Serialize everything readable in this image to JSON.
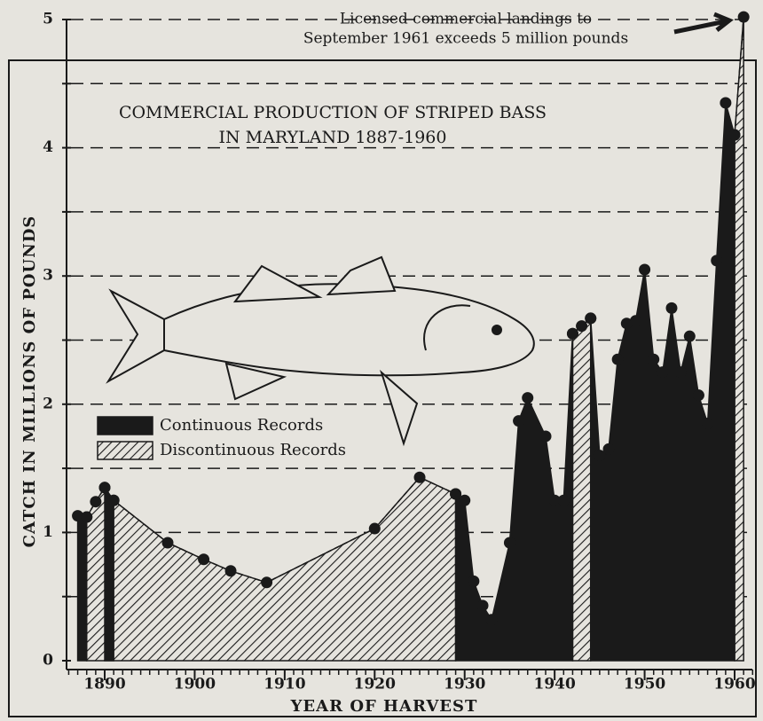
{
  "chart_data": {
    "type": "area",
    "title": [
      "COMMERCIAL PRODUCTION OF STRIPED BASS",
      "IN MARYLAND  1887-1960"
    ],
    "annotation": [
      "Licensed    commercial    landings    to",
      "September 1961 exceeds 5 million pounds"
    ],
    "xlabel": "YEAR OF HARVEST",
    "ylabel": "CATCH IN MILLIONS OF POUNDS",
    "x": [
      1887,
      1888,
      1889,
      1890,
      1891,
      1897,
      1901,
      1904,
      1908,
      1920,
      1925,
      1929,
      1930,
      1931,
      1932,
      1933,
      1935,
      1936,
      1937,
      1939,
      1940,
      1941,
      1942,
      1943,
      1944,
      1945,
      1946,
      1947,
      1948,
      1949,
      1950,
      1951,
      1952,
      1953,
      1954,
      1955,
      1956,
      1957,
      1958,
      1959,
      1960,
      1961
    ],
    "series": [
      {
        "name": "Discontinuous Records",
        "color": "#1a1a1a",
        "fill": "hatched",
        "values": [
          null,
          1.12,
          1.24,
          1.35,
          1.25,
          0.92,
          0.79,
          0.7,
          0.61,
          1.03,
          1.43,
          1.3,
          null,
          null,
          null,
          null,
          null,
          null,
          null,
          null,
          null,
          null,
          2.55,
          2.61,
          2.67,
          null,
          null,
          null,
          null,
          null,
          null,
          null,
          null,
          null,
          null,
          null,
          null,
          null,
          null,
          null,
          4.1,
          5.02
        ]
      },
      {
        "name": "Continuous Records",
        "color": "#1a1a1a",
        "fill": "solid",
        "values": [
          1.13,
          1.12,
          null,
          1.35,
          1.25,
          null,
          null,
          null,
          null,
          null,
          null,
          1.3,
          1.25,
          0.62,
          0.43,
          0.32,
          0.92,
          1.87,
          2.05,
          1.75,
          1.25,
          1.25,
          2.55,
          null,
          2.67,
          1.6,
          1.65,
          2.35,
          2.63,
          2.65,
          3.05,
          2.35,
          2.25,
          2.75,
          2.25,
          2.53,
          2.07,
          1.85,
          3.12,
          4.35,
          4.1,
          null
        ]
      }
    ],
    "xlim": [
      1885,
      1962
    ],
    "xticks": [
      1890,
      1900,
      1910,
      1920,
      1930,
      1940,
      1950,
      1960
    ],
    "ylim": [
      0,
      5
    ],
    "yticks": [
      0,
      1,
      2,
      3,
      4,
      5
    ],
    "minor_yticks": [
      0.5,
      1.5,
      2.5,
      3.5,
      4.5
    ],
    "grid": true
  }
}
